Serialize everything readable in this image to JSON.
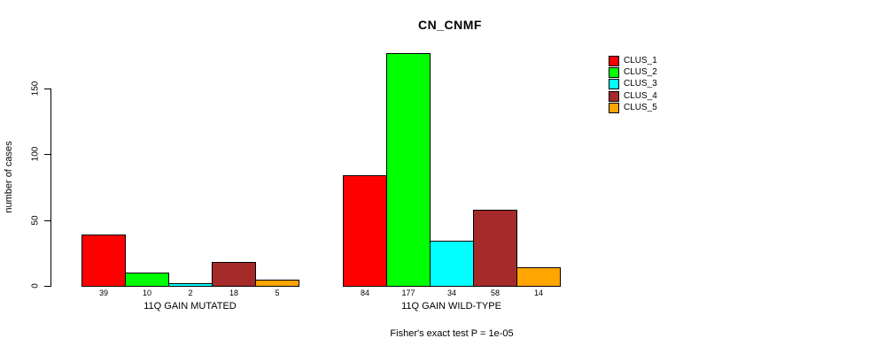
{
  "chart_data": {
    "type": "bar",
    "title": "CN_CNMF",
    "ylabel": "number of cases",
    "xlabel": "",
    "categories": [
      "11Q GAIN MUTATED",
      "11Q GAIN WILD-TYPE"
    ],
    "series": [
      {
        "name": "CLUS_1",
        "color": "#ff0000",
        "values": [
          39,
          84
        ]
      },
      {
        "name": "CLUS_2",
        "color": "#00ff00",
        "values": [
          10,
          177
        ]
      },
      {
        "name": "CLUS_3",
        "color": "#00ffff",
        "values": [
          2,
          34
        ]
      },
      {
        "name": "CLUS_4",
        "color": "#a52a2a",
        "values": [
          18,
          58
        ]
      },
      {
        "name": "CLUS_5",
        "color": "#ffa500",
        "values": [
          5,
          14
        ]
      }
    ],
    "yticks": [
      0,
      50,
      100,
      150
    ],
    "ylim": [
      0,
      180
    ],
    "grid": false,
    "legend_position": "top-right",
    "bar_value_labels": true,
    "annotation": "Fisher's exact test P = 1e-05"
  }
}
